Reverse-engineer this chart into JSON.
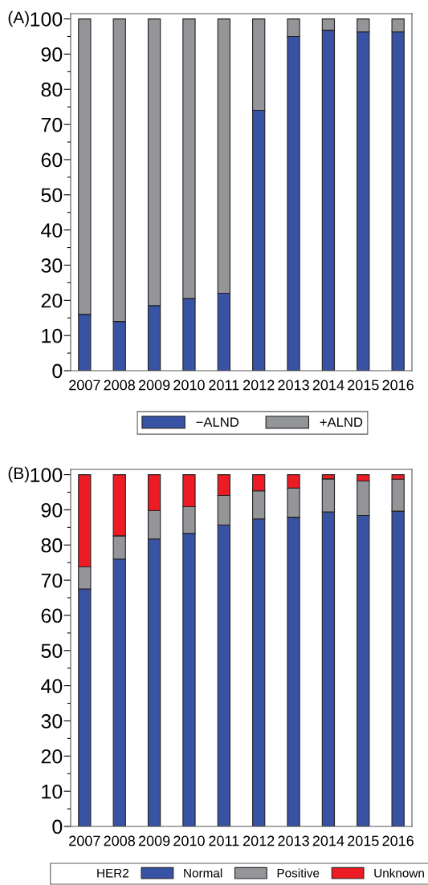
{
  "chart_data": [
    {
      "type": "bar",
      "title": "(A)",
      "stacked": true,
      "legend": "bottom",
      "grid": false,
      "categories": [
        "2007",
        "2008",
        "2009",
        "2010",
        "2011",
        "2012",
        "2013",
        "2014",
        "2015",
        "2016"
      ],
      "series": [
        {
          "name": "−ALND",
          "color": "#3953a4",
          "values": [
            16,
            14,
            18.5,
            20.5,
            22,
            74,
            95,
            96.8,
            96.3,
            96.3
          ]
        },
        {
          "name": "+ALND",
          "color": "#939598",
          "values": [
            84,
            86,
            81.5,
            79.5,
            78,
            26,
            5,
            3.2,
            3.7,
            3.7
          ]
        }
      ],
      "ylim": [
        0,
        101.5
      ],
      "yticks": [
        0,
        {
          "value": 5,
          "label": null
        },
        10,
        {
          "value": 15,
          "label": null
        },
        20,
        {
          "value": 25,
          "label": null
        },
        30,
        {
          "value": 35,
          "label": null
        },
        40,
        {
          "value": 45,
          "label": null
        },
        50,
        {
          "value": 55,
          "label": null
        },
        60,
        {
          "value": 65,
          "label": null
        },
        70,
        {
          "value": 75,
          "label": null
        },
        80,
        {
          "value": 85,
          "label": null
        },
        90,
        {
          "value": 95,
          "label": null
        },
        100
      ]
    },
    {
      "type": "bar",
      "title": "(B)",
      "stacked": true,
      "legend": "bottom",
      "grid": false,
      "legend_title": "HER2",
      "categories": [
        "2007",
        "2008",
        "2009",
        "2010",
        "2011",
        "2012",
        "2013",
        "2014",
        "2015",
        "2016"
      ],
      "series": [
        {
          "name": "Normal",
          "color": "#3953a4",
          "values": [
            67.5,
            76,
            81.7,
            83.3,
            85.7,
            87.4,
            87.9,
            89.4,
            88.4,
            89.6
          ]
        },
        {
          "name": "Positive",
          "color": "#939598",
          "values": [
            6.3,
            6.6,
            8.1,
            7.6,
            8.4,
            8.0,
            8.3,
            9.4,
            9.8,
            9.1
          ]
        },
        {
          "name": "Unknown",
          "color": "#ed1c24",
          "values": [
            26.2,
            17.4,
            10.2,
            9.1,
            5.9,
            4.6,
            3.8,
            1.2,
            1.8,
            1.3
          ]
        }
      ],
      "ylim": [
        0,
        101.5
      ],
      "yticks": [
        0,
        {
          "value": 5,
          "label": null
        },
        10,
        {
          "value": 15,
          "label": null
        },
        20,
        {
          "value": 25,
          "label": null
        },
        30,
        {
          "value": 35,
          "label": null
        },
        40,
        {
          "value": 45,
          "label": null
        },
        50,
        {
          "value": 55,
          "label": null
        },
        60,
        {
          "value": 65,
          "label": null
        },
        70,
        {
          "value": 75,
          "label": null
        },
        80,
        {
          "value": 85,
          "label": null
        },
        90,
        {
          "value": 95,
          "label": null
        },
        100
      ]
    }
  ]
}
